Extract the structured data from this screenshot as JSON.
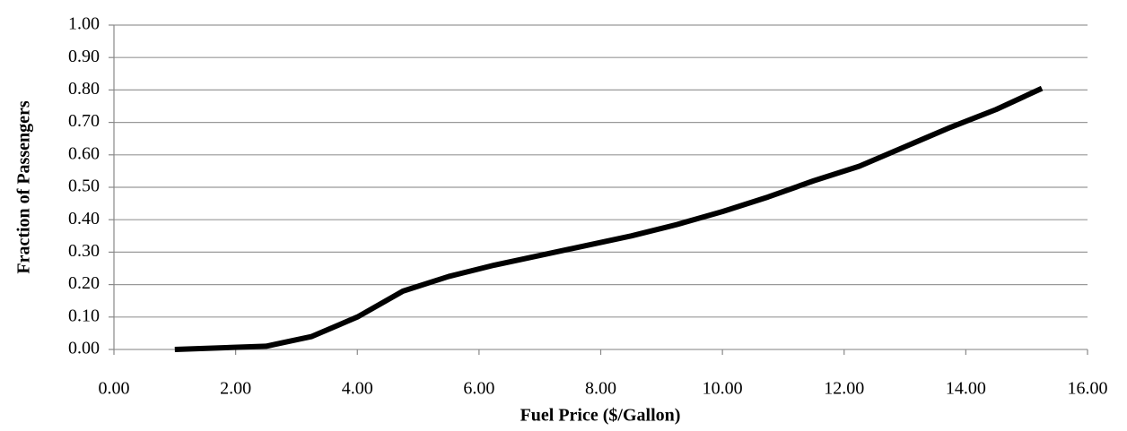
{
  "chart_data": {
    "type": "line",
    "x_label": "Fuel Price ($/Gallon)",
    "y_label": "Fraction of Passengers",
    "x": [
      1,
      2.5,
      3.25,
      4,
      4.75,
      5.5,
      6.25,
      7,
      7.75,
      8.5,
      9.25,
      10,
      10.75,
      11.5,
      12.25,
      13,
      13.75,
      14.5,
      15.25
    ],
    "series": [
      {
        "name": "Fraction of Passengers",
        "color": "#000000",
        "values": [
          0,
          0.01,
          0.04,
          0.1,
          0.18,
          0.225,
          0.26,
          0.29,
          0.32,
          0.35,
          0.385,
          0.425,
          0.47,
          0.52,
          0.565,
          0.625,
          0.685,
          0.74,
          0.805
        ]
      }
    ],
    "xlim": [
      0,
      16
    ],
    "ylim": [
      0,
      1
    ],
    "xticks": [
      {
        "value": 0,
        "label": "0.00"
      },
      {
        "value": 2,
        "label": "2.00"
      },
      {
        "value": 4,
        "label": "4.00"
      },
      {
        "value": 6,
        "label": "6.00"
      },
      {
        "value": 8,
        "label": "8.00"
      },
      {
        "value": 10,
        "label": "10.00"
      },
      {
        "value": 12,
        "label": "12.00"
      },
      {
        "value": 14,
        "label": "14.00"
      },
      {
        "value": 16,
        "label": "16.00"
      }
    ],
    "yticks": [
      {
        "value": 0,
        "label": "0.00"
      },
      {
        "value": 0.1,
        "label": "0.10"
      },
      {
        "value": 0.2,
        "label": "0.20"
      },
      {
        "value": 0.3,
        "label": "0.30"
      },
      {
        "value": 0.4,
        "label": "0.40"
      },
      {
        "value": 0.5,
        "label": "0.50"
      },
      {
        "value": 0.6,
        "label": "0.60"
      },
      {
        "value": 0.7,
        "label": "0.70"
      },
      {
        "value": 0.8,
        "label": "0.80"
      },
      {
        "value": 0.9,
        "label": "0.90"
      },
      {
        "value": 1,
        "label": "1.00"
      }
    ],
    "grid": true
  }
}
